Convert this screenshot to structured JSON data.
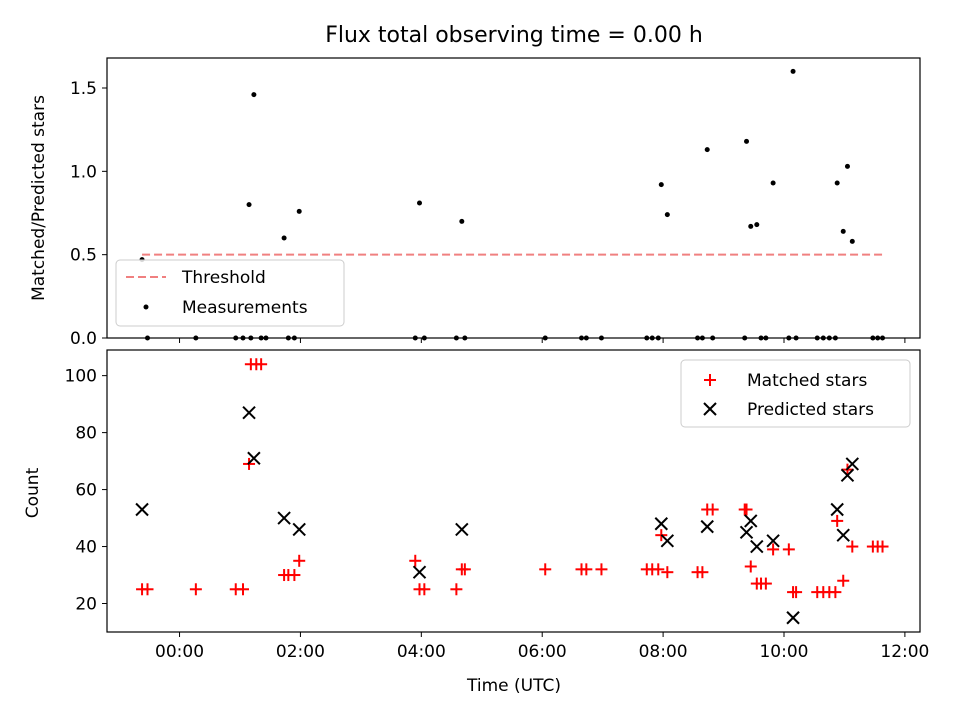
{
  "chart_data": [
    {
      "type": "scatter",
      "title": "Flux total observing time = 0.00 h",
      "xlabel": "",
      "ylabel": "Matched/Predicted stars",
      "x_unit": "hours UTC",
      "xlim": [
        -1.2,
        12.25
      ],
      "ylim": [
        0,
        1.68
      ],
      "y_ticks": [
        0.0,
        0.5,
        1.0,
        1.5
      ],
      "y_tick_labels": [
        "0.0",
        "0.5",
        "1.0",
        "1.5"
      ],
      "legend_position": "lower-left",
      "threshold": {
        "name": "Threshold",
        "color": "#f08080",
        "style": "dashed",
        "value": 0.5,
        "x_range": [
          -0.62,
          11.65
        ]
      },
      "series": [
        {
          "name": "Measurements",
          "color": "#000000",
          "marker": "dot",
          "points": [
            [
              -0.62,
              0.47
            ],
            [
              1.15,
              0.8
            ],
            [
              1.23,
              1.46
            ],
            [
              1.73,
              0.6
            ],
            [
              1.98,
              0.76
            ],
            [
              3.97,
              0.81
            ],
            [
              4.67,
              0.7
            ],
            [
              7.97,
              0.92
            ],
            [
              8.07,
              0.74
            ],
            [
              8.73,
              1.13
            ],
            [
              9.38,
              1.18
            ],
            [
              9.45,
              0.67
            ],
            [
              9.55,
              0.68
            ],
            [
              9.82,
              0.93
            ],
            [
              10.15,
              1.6
            ],
            [
              10.88,
              0.93
            ],
            [
              10.98,
              0.64
            ],
            [
              11.05,
              1.03
            ],
            [
              11.13,
              0.58
            ],
            [
              -0.53,
              0
            ],
            [
              0.27,
              0
            ],
            [
              0.93,
              0
            ],
            [
              1.05,
              0
            ],
            [
              1.18,
              0
            ],
            [
              1.35,
              0
            ],
            [
              1.43,
              0
            ],
            [
              1.8,
              0
            ],
            [
              1.9,
              0
            ],
            [
              3.9,
              0
            ],
            [
              4.05,
              0
            ],
            [
              4.58,
              0
            ],
            [
              4.72,
              0
            ],
            [
              6.05,
              0
            ],
            [
              6.65,
              0
            ],
            [
              6.73,
              0
            ],
            [
              6.98,
              0
            ],
            [
              7.73,
              0
            ],
            [
              7.82,
              0
            ],
            [
              7.92,
              0
            ],
            [
              8.57,
              0
            ],
            [
              8.65,
              0
            ],
            [
              8.82,
              0
            ],
            [
              9.35,
              0
            ],
            [
              9.62,
              0
            ],
            [
              9.7,
              0
            ],
            [
              10.08,
              0
            ],
            [
              10.2,
              0
            ],
            [
              10.55,
              0
            ],
            [
              10.65,
              0
            ],
            [
              10.75,
              0
            ],
            [
              10.85,
              0
            ],
            [
              11.47,
              0
            ],
            [
              11.55,
              0
            ],
            [
              11.63,
              0
            ]
          ]
        }
      ]
    },
    {
      "type": "scatter",
      "title": "",
      "xlabel": "Time (UTC)",
      "ylabel": "Count",
      "x_unit": "hours UTC",
      "xlim": [
        -1.2,
        12.25
      ],
      "ylim": [
        10,
        109
      ],
      "y_ticks": [
        20,
        40,
        60,
        80,
        100
      ],
      "y_tick_labels": [
        "20",
        "40",
        "60",
        "80",
        "100"
      ],
      "x_ticks": [
        0,
        2,
        4,
        6,
        8,
        10,
        12
      ],
      "x_tick_labels": [
        "00:00",
        "02:00",
        "04:00",
        "06:00",
        "08:00",
        "10:00",
        "12:00"
      ],
      "legend_position": "upper-right",
      "series": [
        {
          "name": "Matched stars",
          "color": "#ff0000",
          "marker": "plus",
          "points": [
            [
              -0.62,
              25
            ],
            [
              -0.53,
              25
            ],
            [
              0.27,
              25
            ],
            [
              0.93,
              25
            ],
            [
              1.05,
              25
            ],
            [
              1.15,
              69
            ],
            [
              1.18,
              104
            ],
            [
              1.27,
              104
            ],
            [
              1.35,
              104
            ],
            [
              1.73,
              30
            ],
            [
              1.8,
              30
            ],
            [
              1.9,
              30
            ],
            [
              1.98,
              35
            ],
            [
              3.9,
              35
            ],
            [
              3.97,
              25
            ],
            [
              4.05,
              25
            ],
            [
              4.58,
              25
            ],
            [
              4.67,
              32
            ],
            [
              4.72,
              32
            ],
            [
              6.05,
              32
            ],
            [
              6.65,
              32
            ],
            [
              6.73,
              32
            ],
            [
              6.98,
              32
            ],
            [
              7.73,
              32
            ],
            [
              7.82,
              32
            ],
            [
              7.92,
              32
            ],
            [
              7.97,
              44
            ],
            [
              8.07,
              31
            ],
            [
              8.57,
              31
            ],
            [
              8.65,
              31
            ],
            [
              8.73,
              53
            ],
            [
              8.82,
              53
            ],
            [
              9.35,
              53
            ],
            [
              9.38,
              53
            ],
            [
              9.45,
              33
            ],
            [
              9.55,
              27
            ],
            [
              9.62,
              27
            ],
            [
              9.7,
              27
            ],
            [
              9.82,
              39
            ],
            [
              10.08,
              39
            ],
            [
              10.15,
              24
            ],
            [
              10.2,
              24
            ],
            [
              10.55,
              24
            ],
            [
              10.65,
              24
            ],
            [
              10.75,
              24
            ],
            [
              10.85,
              24
            ],
            [
              10.88,
              49
            ],
            [
              10.98,
              28
            ],
            [
              11.05,
              67
            ],
            [
              11.13,
              40
            ],
            [
              11.47,
              40
            ],
            [
              11.55,
              40
            ],
            [
              11.63,
              40
            ]
          ]
        },
        {
          "name": "Predicted stars",
          "color": "#000000",
          "marker": "x",
          "points": [
            [
              -0.62,
              53
            ],
            [
              1.15,
              87
            ],
            [
              1.23,
              71
            ],
            [
              1.73,
              50
            ],
            [
              1.98,
              46
            ],
            [
              3.97,
              31
            ],
            [
              4.67,
              46
            ],
            [
              7.97,
              48
            ],
            [
              8.07,
              42
            ],
            [
              8.73,
              47
            ],
            [
              9.38,
              45
            ],
            [
              9.45,
              49
            ],
            [
              9.55,
              40
            ],
            [
              9.82,
              42
            ],
            [
              10.15,
              15
            ],
            [
              10.88,
              53
            ],
            [
              10.98,
              44
            ],
            [
              11.05,
              65
            ],
            [
              11.13,
              69
            ]
          ]
        }
      ]
    }
  ]
}
